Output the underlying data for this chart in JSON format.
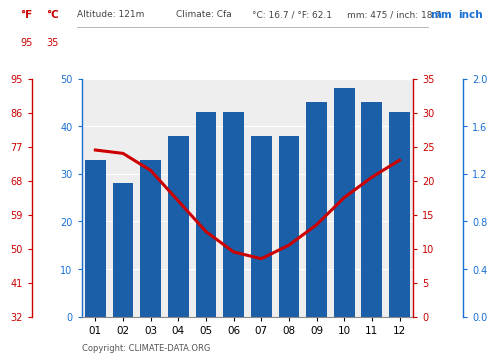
{
  "months": [
    "01",
    "02",
    "03",
    "04",
    "05",
    "06",
    "07",
    "08",
    "09",
    "10",
    "11",
    "12"
  ],
  "precipitation_mm": [
    33,
    28,
    33,
    38,
    43,
    43,
    38,
    38,
    45,
    48,
    45,
    43
  ],
  "temperature_c": [
    24.5,
    24.0,
    21.5,
    17.0,
    12.5,
    9.5,
    8.5,
    10.5,
    13.5,
    17.5,
    20.5,
    23.0
  ],
  "bar_color": "#1a5fa8",
  "line_color": "#cc0000",
  "precip_ylim_mm": [
    0,
    50
  ],
  "temp_ylim_c": [
    0,
    35
  ],
  "precip_yticks_mm": [
    0,
    10,
    20,
    30,
    40,
    50
  ],
  "precip_yticks_inch": [
    "0.0",
    "0.4",
    "0.8",
    "1.2",
    "1.6",
    "2.0"
  ],
  "temp_yticks_c": [
    0,
    5,
    10,
    15,
    20,
    25,
    30,
    35
  ],
  "temp_yticks_f": [
    "32",
    "41",
    "50",
    "59",
    "68",
    "77",
    "86",
    "95"
  ],
  "label_f": "°F",
  "label_c": "°C",
  "label_mm": "mm",
  "label_inch": "inch",
  "copyright_text": "Copyright: CLIMATE-DATA.ORG",
  "axis_color_temp": "#cc0000",
  "axis_color_precip": "#1a6fd4",
  "bg_color": "#ffffff",
  "plot_bg_color": "#eeeeee"
}
